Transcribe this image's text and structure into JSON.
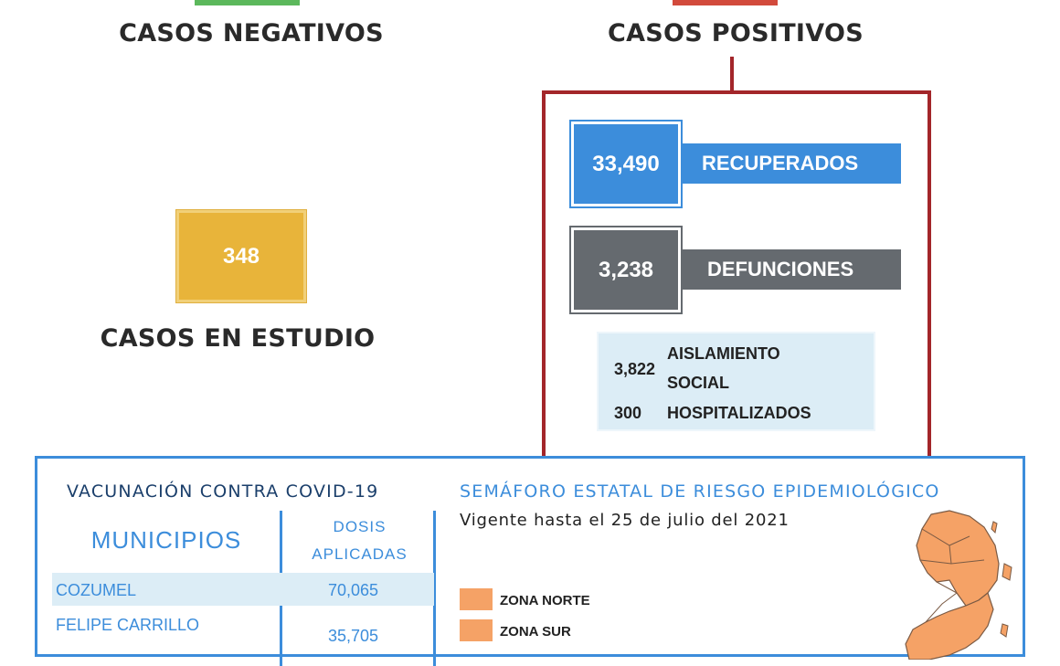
{
  "negativos": {
    "title": "CASOS NEGATIVOS"
  },
  "positivos": {
    "title": "CASOS POSITIVOS"
  },
  "estudio": {
    "value": "348",
    "title": "CASOS EN ESTUDIO"
  },
  "recuperados": {
    "value": "33,490",
    "label": "RECUPERADOS"
  },
  "defunciones": {
    "value": "3,238",
    "label": "DEFUNCIONES"
  },
  "aislamiento": {
    "value": "3,822",
    "label_line1": "AISLAMIENTO",
    "label_line2": "SOCIAL"
  },
  "hospitalizados": {
    "value": "300",
    "label": "HOSPITALIZADOS"
  },
  "vacunacion": {
    "title": "VACUNACIÓN CONTRA COVID-19",
    "col_municipios": "MUNICIPIOS",
    "col_dosis_1": "DOSIS",
    "col_dosis_2": "APLICADAS",
    "rows": [
      {
        "municipio": "COZUMEL",
        "dosis": "70,065"
      },
      {
        "municipio": "FELIPE CARRILLO",
        "dosis": "35,705"
      }
    ]
  },
  "semaforo": {
    "title": "SEMÁFORO ESTATAL DE RIESGO EPIDEMIOLÓGICO",
    "vigencia": "Vigente hasta el 25 de julio del 2021",
    "legend": [
      "ZONA NORTE",
      "ZONA SUR"
    ]
  },
  "colors": {
    "negative_green": "#5cb85c",
    "positive_red": "#a3262a",
    "study_yellow": "#e8b43a",
    "recovered_blue": "#3c8ddb",
    "deaths_gray": "#656a6f",
    "risk_orange": "#f5a266"
  }
}
